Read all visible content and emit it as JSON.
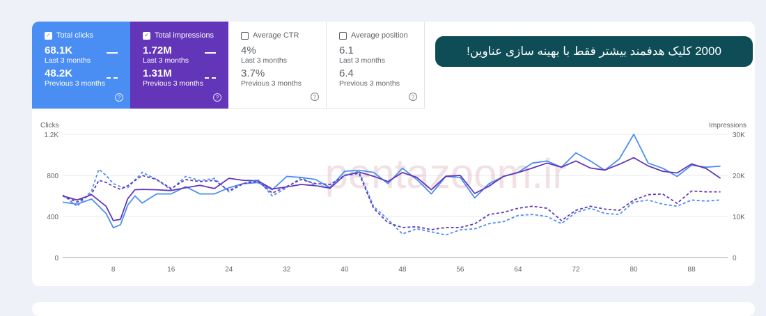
{
  "tiles": [
    {
      "label": "Total clicks",
      "checked": true,
      "value": "68.1K",
      "period": "Last 3 months",
      "prev_value": "48.2K",
      "prev_period": "Previous 3 months"
    },
    {
      "label": "Total impressions",
      "checked": true,
      "value": "1.72M",
      "period": "Last 3 months",
      "prev_value": "1.31M",
      "prev_period": "Previous 3 months"
    },
    {
      "label": "Average CTR",
      "checked": false,
      "value": "4%",
      "period": "Last 3 months",
      "prev_value": "3.7%",
      "prev_period": "Previous 3 months"
    },
    {
      "label": "Average position",
      "checked": false,
      "value": "6.1",
      "period": "Last 3 months",
      "prev_value": "6.4",
      "prev_period": "Previous 3 months"
    }
  ],
  "banner": {
    "text": "2000 کلیک هدفمند بیشتر فقط با بهینه سازی عناوین!"
  },
  "watermark": "pentazoom.ir",
  "icons": {
    "checkbox": "check-icon",
    "help": "help-circle-icon"
  },
  "colors": {
    "clicks": "#4a8ef4",
    "impressions": "#6335b8",
    "banner": "#0f4d56"
  },
  "chart_data": {
    "type": "line",
    "y_left_label": "Clicks",
    "y_right_label": "Impressions",
    "y_left_ticks": [
      "0",
      "400",
      "800",
      "1.2K"
    ],
    "y_right_ticks": [
      "0",
      "10K",
      "20K",
      "30K"
    ],
    "y_left_range": [
      0,
      1200
    ],
    "y_right_range": [
      0,
      30000
    ],
    "x_range": [
      1,
      93
    ],
    "x_ticks": [
      8,
      16,
      24,
      32,
      40,
      48,
      56,
      64,
      72,
      80,
      88
    ],
    "grid": true,
    "series": [
      {
        "name": "",
        "metric": "Total clicks",
        "period": "Last 3 months",
        "axis": "left",
        "color": "#4a8ef4",
        "dashed": false,
        "points": [
          [
            1,
            540
          ],
          [
            3,
            520
          ],
          [
            5,
            570
          ],
          [
            7,
            430
          ],
          [
            8,
            290
          ],
          [
            9,
            320
          ],
          [
            10,
            510
          ],
          [
            11,
            600
          ],
          [
            12,
            530
          ],
          [
            14,
            620
          ],
          [
            16,
            620
          ],
          [
            18,
            690
          ],
          [
            20,
            620
          ],
          [
            22,
            620
          ],
          [
            24,
            680
          ],
          [
            26,
            720
          ],
          [
            28,
            730
          ],
          [
            30,
            660
          ],
          [
            32,
            790
          ],
          [
            34,
            780
          ],
          [
            36,
            760
          ],
          [
            38,
            680
          ],
          [
            40,
            840
          ],
          [
            42,
            850
          ],
          [
            44,
            830
          ],
          [
            46,
            720
          ],
          [
            48,
            870
          ],
          [
            50,
            760
          ],
          [
            52,
            620
          ],
          [
            54,
            790
          ],
          [
            56,
            780
          ],
          [
            58,
            580
          ],
          [
            60,
            720
          ],
          [
            62,
            790
          ],
          [
            64,
            830
          ],
          [
            66,
            920
          ],
          [
            68,
            940
          ],
          [
            70,
            880
          ],
          [
            72,
            1020
          ],
          [
            74,
            940
          ],
          [
            76,
            850
          ],
          [
            78,
            960
          ],
          [
            80,
            1200
          ],
          [
            82,
            920
          ],
          [
            84,
            870
          ],
          [
            86,
            790
          ],
          [
            88,
            900
          ],
          [
            90,
            880
          ],
          [
            92,
            890
          ]
        ]
      },
      {
        "name": "",
        "metric": "Total impressions",
        "period": "Last 3 months",
        "axis": "right",
        "color": "#6335b8",
        "dashed": false,
        "points": [
          [
            1,
            15000
          ],
          [
            3,
            14000
          ],
          [
            5,
            15300
          ],
          [
            7,
            12500
          ],
          [
            8,
            9000
          ],
          [
            9,
            9300
          ],
          [
            10,
            14300
          ],
          [
            11,
            16500
          ],
          [
            12,
            16600
          ],
          [
            14,
            16500
          ],
          [
            16,
            16300
          ],
          [
            18,
            17000
          ],
          [
            20,
            17600
          ],
          [
            22,
            16800
          ],
          [
            24,
            19300
          ],
          [
            26,
            18800
          ],
          [
            28,
            18700
          ],
          [
            30,
            16700
          ],
          [
            32,
            17200
          ],
          [
            34,
            17800
          ],
          [
            36,
            17500
          ],
          [
            38,
            16900
          ],
          [
            40,
            20000
          ],
          [
            42,
            20800
          ],
          [
            44,
            19800
          ],
          [
            46,
            18500
          ],
          [
            48,
            20700
          ],
          [
            50,
            19500
          ],
          [
            52,
            16500
          ],
          [
            54,
            19800
          ],
          [
            56,
            20000
          ],
          [
            58,
            15600
          ],
          [
            60,
            17400
          ],
          [
            62,
            19800
          ],
          [
            64,
            20700
          ],
          [
            66,
            21800
          ],
          [
            68,
            23000
          ],
          [
            70,
            22000
          ],
          [
            72,
            23500
          ],
          [
            74,
            21800
          ],
          [
            76,
            21300
          ],
          [
            78,
            22700
          ],
          [
            80,
            24300
          ],
          [
            82,
            22300
          ],
          [
            84,
            21000
          ],
          [
            86,
            20600
          ],
          [
            88,
            22800
          ],
          [
            90,
            21700
          ],
          [
            92,
            19300
          ]
        ]
      },
      {
        "name": "",
        "metric": "Total clicks",
        "period": "Previous 3 months",
        "axis": "left",
        "color": "#4a8ef4",
        "dashed": true,
        "points": [
          [
            1,
            610
          ],
          [
            3,
            500
          ],
          [
            5,
            650
          ],
          [
            6,
            860
          ],
          [
            7,
            800
          ],
          [
            8,
            720
          ],
          [
            9,
            690
          ],
          [
            10,
            680
          ],
          [
            12,
            830
          ],
          [
            14,
            760
          ],
          [
            16,
            660
          ],
          [
            18,
            790
          ],
          [
            20,
            750
          ],
          [
            22,
            770
          ],
          [
            24,
            640
          ],
          [
            26,
            720
          ],
          [
            28,
            760
          ],
          [
            30,
            600
          ],
          [
            32,
            680
          ],
          [
            34,
            780
          ],
          [
            36,
            700
          ],
          [
            38,
            690
          ],
          [
            40,
            800
          ],
          [
            42,
            840
          ],
          [
            44,
            500
          ],
          [
            46,
            370
          ],
          [
            48,
            230
          ],
          [
            50,
            280
          ],
          [
            52,
            250
          ],
          [
            54,
            220
          ],
          [
            56,
            270
          ],
          [
            58,
            280
          ],
          [
            60,
            330
          ],
          [
            62,
            350
          ],
          [
            64,
            410
          ],
          [
            66,
            420
          ],
          [
            68,
            400
          ],
          [
            70,
            330
          ],
          [
            72,
            440
          ],
          [
            74,
            480
          ],
          [
            76,
            430
          ],
          [
            78,
            420
          ],
          [
            80,
            540
          ],
          [
            82,
            560
          ],
          [
            84,
            520
          ],
          [
            86,
            500
          ],
          [
            88,
            560
          ],
          [
            90,
            550
          ],
          [
            92,
            560
          ]
        ]
      },
      {
        "name": "",
        "metric": "Total impressions",
        "period": "Previous 3 months",
        "axis": "right",
        "color": "#6335b8",
        "dashed": true,
        "points": [
          [
            1,
            15000
          ],
          [
            3,
            13500
          ],
          [
            5,
            15500
          ],
          [
            6,
            18800
          ],
          [
            7,
            18300
          ],
          [
            8,
            17300
          ],
          [
            9,
            16600
          ],
          [
            10,
            17500
          ],
          [
            12,
            20000
          ],
          [
            14,
            19000
          ],
          [
            16,
            16800
          ],
          [
            18,
            19000
          ],
          [
            20,
            18500
          ],
          [
            22,
            18800
          ],
          [
            24,
            16300
          ],
          [
            26,
            18000
          ],
          [
            28,
            18600
          ],
          [
            30,
            15700
          ],
          [
            32,
            17300
          ],
          [
            34,
            19000
          ],
          [
            36,
            18000
          ],
          [
            38,
            17800
          ],
          [
            40,
            20000
          ],
          [
            42,
            20500
          ],
          [
            44,
            12000
          ],
          [
            46,
            8500
          ],
          [
            48,
            7300
          ],
          [
            50,
            7500
          ],
          [
            52,
            6800
          ],
          [
            54,
            7300
          ],
          [
            56,
            7300
          ],
          [
            58,
            8200
          ],
          [
            60,
            10500
          ],
          [
            62,
            11000
          ],
          [
            64,
            12000
          ],
          [
            66,
            12500
          ],
          [
            68,
            12000
          ],
          [
            70,
            9000
          ],
          [
            72,
            11500
          ],
          [
            74,
            12500
          ],
          [
            76,
            11800
          ],
          [
            78,
            11500
          ],
          [
            80,
            14000
          ],
          [
            82,
            15300
          ],
          [
            84,
            15500
          ],
          [
            86,
            13200
          ],
          [
            88,
            16200
          ],
          [
            90,
            16000
          ],
          [
            92,
            16000
          ]
        ]
      }
    ]
  }
}
